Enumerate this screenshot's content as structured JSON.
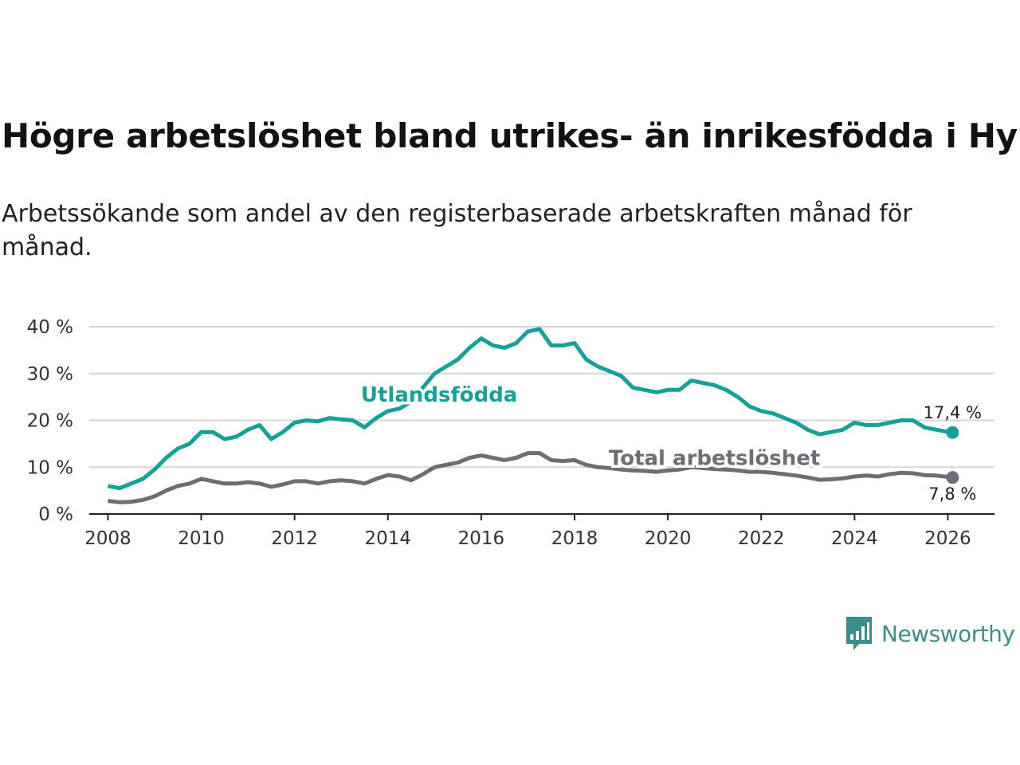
{
  "title": "Högre arbetslöshet bland utrikes- än inrikesfödda i Hylte",
  "subtitle": "Arbetssökande som andel av den registerbaserade arbetskraften månad för månad.",
  "brand": {
    "name": "Newsworthy",
    "color": "#3a8f8a"
  },
  "chart_data": {
    "type": "line",
    "title": "Högre arbetslöshet bland utrikes- än inrikesfödda i Hylte",
    "xlabel": "",
    "ylabel": "",
    "xlim": [
      2007.6,
      2027.0
    ],
    "ylim": [
      0,
      40
    ],
    "grid": true,
    "x_ticks": [
      2008,
      2010,
      2012,
      2014,
      2016,
      2018,
      2020,
      2022,
      2024,
      2026
    ],
    "x_tick_labels": [
      "2008",
      "2010",
      "2012",
      "2014",
      "2016",
      "2018",
      "2020",
      "2022",
      "2024",
      "2026"
    ],
    "y_ticks": [
      0,
      10,
      20,
      30,
      40
    ],
    "y_tick_labels": [
      "0 %",
      "10 %",
      "20 %",
      "30 %",
      "40 %"
    ],
    "series": [
      {
        "name": "Utlandsfödda",
        "label": "Utlandsfödda",
        "color": "#14a198",
        "end_label": "17,4 %",
        "points": [
          [
            2008.0,
            6.0
          ],
          [
            2008.25,
            5.5
          ],
          [
            2008.5,
            6.5
          ],
          [
            2008.75,
            7.5
          ],
          [
            2009.0,
            9.5
          ],
          [
            2009.25,
            12.0
          ],
          [
            2009.5,
            14.0
          ],
          [
            2009.75,
            15.0
          ],
          [
            2010.0,
            17.5
          ],
          [
            2010.25,
            17.5
          ],
          [
            2010.5,
            16.0
          ],
          [
            2010.75,
            16.5
          ],
          [
            2011.0,
            18.0
          ],
          [
            2011.25,
            19.0
          ],
          [
            2011.5,
            16.0
          ],
          [
            2011.75,
            17.5
          ],
          [
            2012.0,
            19.5
          ],
          [
            2012.25,
            20.0
          ],
          [
            2012.5,
            19.8
          ],
          [
            2012.75,
            20.5
          ],
          [
            2013.0,
            20.2
          ],
          [
            2013.25,
            20.0
          ],
          [
            2013.5,
            18.5
          ],
          [
            2013.75,
            20.5
          ],
          [
            2014.0,
            22.0
          ],
          [
            2014.25,
            22.5
          ],
          [
            2014.5,
            24.0
          ],
          [
            2014.75,
            27.0
          ],
          [
            2015.0,
            30.0
          ],
          [
            2015.25,
            31.5
          ],
          [
            2015.5,
            33.0
          ],
          [
            2015.75,
            35.5
          ],
          [
            2016.0,
            37.5
          ],
          [
            2016.25,
            36.0
          ],
          [
            2016.5,
            35.5
          ],
          [
            2016.75,
            36.5
          ],
          [
            2017.0,
            39.0
          ],
          [
            2017.25,
            39.5
          ],
          [
            2017.5,
            36.0
          ],
          [
            2017.75,
            36.0
          ],
          [
            2018.0,
            36.5
          ],
          [
            2018.25,
            33.0
          ],
          [
            2018.5,
            31.5
          ],
          [
            2018.75,
            30.5
          ],
          [
            2019.0,
            29.5
          ],
          [
            2019.25,
            27.0
          ],
          [
            2019.5,
            26.5
          ],
          [
            2019.75,
            26.0
          ],
          [
            2020.0,
            26.5
          ],
          [
            2020.25,
            26.5
          ],
          [
            2020.5,
            28.5
          ],
          [
            2020.75,
            28.0
          ],
          [
            2021.0,
            27.5
          ],
          [
            2021.25,
            26.5
          ],
          [
            2021.5,
            25.0
          ],
          [
            2021.75,
            23.0
          ],
          [
            2022.0,
            22.0
          ],
          [
            2022.25,
            21.5
          ],
          [
            2022.5,
            20.5
          ],
          [
            2022.75,
            19.5
          ],
          [
            2023.0,
            18.0
          ],
          [
            2023.25,
            17.0
          ],
          [
            2023.5,
            17.5
          ],
          [
            2023.75,
            18.0
          ],
          [
            2024.0,
            19.5
          ],
          [
            2024.25,
            19.0
          ],
          [
            2024.5,
            19.0
          ],
          [
            2024.75,
            19.5
          ],
          [
            2025.0,
            20.0
          ],
          [
            2025.25,
            20.0
          ],
          [
            2025.5,
            18.5
          ],
          [
            2025.75,
            18.0
          ],
          [
            2026.1,
            17.4
          ]
        ]
      },
      {
        "name": "Total arbetslöshet",
        "label": "Total arbetslöshet",
        "color": "#6e6c75",
        "end_label": "7,8 %",
        "points": [
          [
            2008.0,
            2.8
          ],
          [
            2008.25,
            2.5
          ],
          [
            2008.5,
            2.6
          ],
          [
            2008.75,
            3.0
          ],
          [
            2009.0,
            3.8
          ],
          [
            2009.25,
            5.0
          ],
          [
            2009.5,
            6.0
          ],
          [
            2009.75,
            6.5
          ],
          [
            2010.0,
            7.5
          ],
          [
            2010.25,
            7.0
          ],
          [
            2010.5,
            6.5
          ],
          [
            2010.75,
            6.5
          ],
          [
            2011.0,
            6.8
          ],
          [
            2011.25,
            6.5
          ],
          [
            2011.5,
            5.8
          ],
          [
            2011.75,
            6.3
          ],
          [
            2012.0,
            7.0
          ],
          [
            2012.25,
            7.0
          ],
          [
            2012.5,
            6.5
          ],
          [
            2012.75,
            7.0
          ],
          [
            2013.0,
            7.2
          ],
          [
            2013.25,
            7.0
          ],
          [
            2013.5,
            6.5
          ],
          [
            2013.75,
            7.5
          ],
          [
            2014.0,
            8.3
          ],
          [
            2014.25,
            8.0
          ],
          [
            2014.5,
            7.2
          ],
          [
            2014.75,
            8.5
          ],
          [
            2015.0,
            10.0
          ],
          [
            2015.25,
            10.5
          ],
          [
            2015.5,
            11.0
          ],
          [
            2015.75,
            12.0
          ],
          [
            2016.0,
            12.5
          ],
          [
            2016.25,
            12.0
          ],
          [
            2016.5,
            11.5
          ],
          [
            2016.75,
            12.0
          ],
          [
            2017.0,
            13.0
          ],
          [
            2017.25,
            13.0
          ],
          [
            2017.5,
            11.5
          ],
          [
            2017.75,
            11.3
          ],
          [
            2018.0,
            11.5
          ],
          [
            2018.25,
            10.5
          ],
          [
            2018.5,
            10.0
          ],
          [
            2018.75,
            9.8
          ],
          [
            2019.0,
            9.5
          ],
          [
            2019.25,
            9.3
          ],
          [
            2019.5,
            9.2
          ],
          [
            2019.75,
            9.0
          ],
          [
            2020.0,
            9.3
          ],
          [
            2020.25,
            9.5
          ],
          [
            2020.5,
            10.0
          ],
          [
            2020.75,
            9.8
          ],
          [
            2021.0,
            9.6
          ],
          [
            2021.25,
            9.5
          ],
          [
            2021.5,
            9.3
          ],
          [
            2021.75,
            9.0
          ],
          [
            2022.0,
            9.0
          ],
          [
            2022.25,
            8.8
          ],
          [
            2022.5,
            8.5
          ],
          [
            2022.75,
            8.2
          ],
          [
            2023.0,
            7.8
          ],
          [
            2023.25,
            7.3
          ],
          [
            2023.5,
            7.4
          ],
          [
            2023.75,
            7.6
          ],
          [
            2024.0,
            8.0
          ],
          [
            2024.25,
            8.2
          ],
          [
            2024.5,
            8.0
          ],
          [
            2024.75,
            8.5
          ],
          [
            2025.0,
            8.8
          ],
          [
            2025.25,
            8.7
          ],
          [
            2025.5,
            8.3
          ],
          [
            2025.75,
            8.2
          ],
          [
            2026.1,
            7.8
          ]
        ]
      }
    ]
  }
}
